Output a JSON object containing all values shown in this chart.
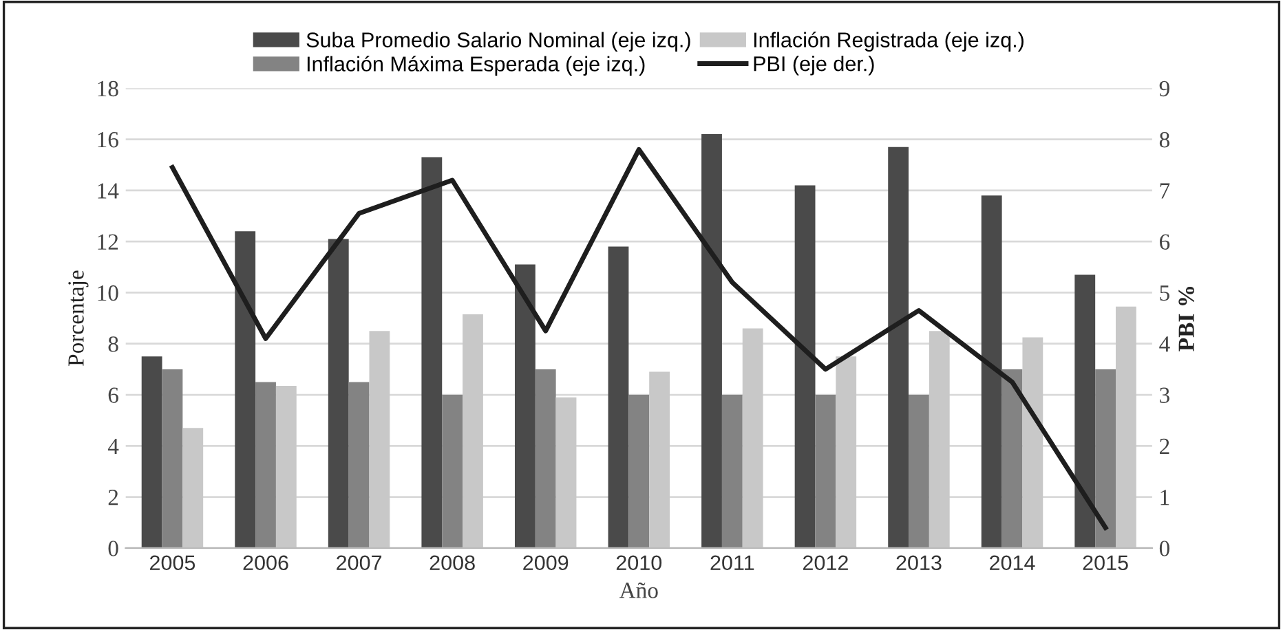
{
  "chart_data": {
    "type": "bar",
    "xlabel": "Año",
    "ylabel": "Porcentaje",
    "y2label": "PBI %",
    "categories": [
      "2005",
      "2006",
      "2007",
      "2008",
      "2009",
      "2010",
      "2011",
      "2012",
      "2013",
      "2014",
      "2015"
    ],
    "series": [
      {
        "name": "Suba Promedio Salario Nominal (eje izq.)",
        "color": "#4a4a4a",
        "values": [
          7.5,
          12.4,
          12.1,
          15.3,
          11.1,
          11.8,
          16.2,
          14.2,
          15.7,
          13.8,
          10.7
        ]
      },
      {
        "name": "Inflación Máxima Esperada (eje izq.)",
        "color": "#838383",
        "values": [
          7,
          6.5,
          6.5,
          6,
          7,
          6,
          6,
          6,
          6,
          7,
          7
        ]
      },
      {
        "name": "Inflación Registrada (eje izq.)",
        "color": "#c8c8c8",
        "values": [
          4.7,
          6.35,
          8.5,
          9.15,
          5.9,
          6.9,
          8.6,
          7.5,
          8.5,
          8.25,
          9.45
        ]
      },
      {
        "name": "PBI (eje der.)",
        "color": "#1e1e1e",
        "type": "line",
        "axis": "y2",
        "values": [
          7.45,
          4.1,
          6.55,
          7.2,
          4.25,
          7.8,
          5.2,
          3.5,
          4.65,
          3.25,
          0.4
        ]
      }
    ],
    "ylim": [
      0,
      18
    ],
    "yticks": [
      0,
      2,
      4,
      6,
      8,
      10,
      12,
      14,
      16,
      18
    ],
    "y2lim": [
      0,
      9
    ],
    "y2ticks": [
      0,
      1,
      2,
      3,
      4,
      5,
      6,
      7,
      8,
      9
    ],
    "grid": "y",
    "legend": "top",
    "marker": "none",
    "line_style": "solid"
  }
}
